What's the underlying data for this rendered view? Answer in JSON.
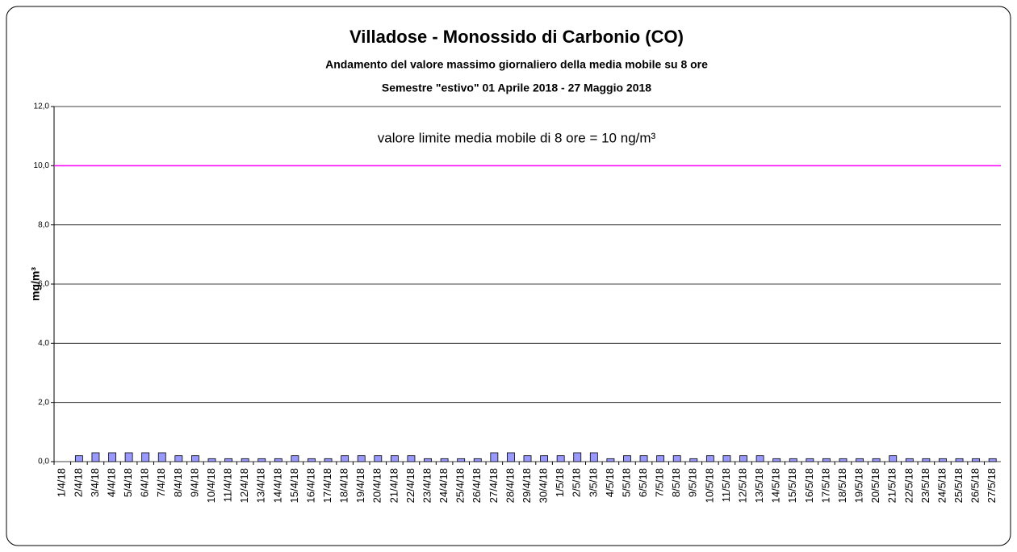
{
  "chart_data": {
    "type": "bar",
    "title": "Villadose - Monossido di Carbonio (CO)",
    "subtitle": [
      "Andamento del valore massimo giornaliero della media mobile su 8 ore",
      "Semestre \"estivo\" 01 Aprile 2018 - 27 Maggio 2018"
    ],
    "y_label": "mg/m³",
    "annotation": "valore limite media mobile di 8 ore = 10 ng/m³",
    "limit": 10,
    "limit_color": "#ff00ff",
    "categories": [
      "1/4/18",
      "2/4/18",
      "3/4/18",
      "4/4/18",
      "5/4/18",
      "6/4/18",
      "7/4/18",
      "8/4/18",
      "9/4/18",
      "10/4/18",
      "11/4/18",
      "12/4/18",
      "13/4/18",
      "14/4/18",
      "15/4/18",
      "16/4/18",
      "17/4/18",
      "18/4/18",
      "19/4/18",
      "20/4/18",
      "21/4/18",
      "22/4/18",
      "23/4/18",
      "24/4/18",
      "25/4/18",
      "26/4/18",
      "27/4/18",
      "28/4/18",
      "29/4/18",
      "30/4/18",
      "1/5/18",
      "2/5/18",
      "3/5/18",
      "4/5/18",
      "5/5/18",
      "6/5/18",
      "7/5/18",
      "8/5/18",
      "9/5/18",
      "10/5/18",
      "11/5/18",
      "12/5/18",
      "13/5/18",
      "14/5/18",
      "15/5/18",
      "16/5/18",
      "17/5/18",
      "18/5/18",
      "19/5/18",
      "20/5/18",
      "21/5/18",
      "22/5/18",
      "23/5/18",
      "24/5/18",
      "25/5/18",
      "26/5/18",
      "27/5/18"
    ],
    "values": [
      null,
      0.2,
      0.3,
      0.3,
      0.3,
      0.3,
      0.3,
      0.2,
      0.2,
      0.1,
      0.1,
      0.1,
      0.1,
      0.1,
      0.2,
      0.1,
      0.1,
      0.2,
      0.2,
      0.2,
      0.2,
      0.2,
      0.1,
      0.1,
      0.1,
      0.1,
      0.3,
      0.3,
      0.2,
      0.2,
      0.2,
      0.3,
      0.3,
      0.1,
      0.2,
      0.2,
      0.2,
      0.2,
      0.1,
      0.2,
      0.2,
      0.2,
      0.2,
      0.1,
      0.1,
      0.1,
      0.1,
      0.1,
      0.1,
      0.1,
      0.2,
      0.1,
      0.1,
      0.1,
      0.1,
      0.1,
      0.1
    ],
    "color": "#9999ff",
    "ylim": [
      0,
      12
    ],
    "yticks": [
      {
        "value": 0,
        "label": "0,0"
      },
      {
        "value": 2,
        "label": "2,0"
      },
      {
        "value": 4,
        "label": "4,0"
      },
      {
        "value": 6,
        "label": "6,0"
      },
      {
        "value": 8,
        "label": "8,0"
      },
      {
        "value": 10,
        "label": "10,0"
      },
      {
        "value": 12,
        "label": "12,0"
      }
    ],
    "grid": true
  }
}
